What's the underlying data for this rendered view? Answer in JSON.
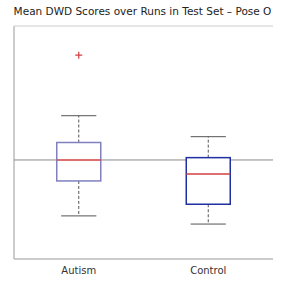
{
  "chart_data": {
    "type": "box",
    "title": "Mean DWD Scores over Runs in Test Set – Pose O",
    "categories": [
      "Autism",
      "Control"
    ],
    "boxes": [
      {
        "median": 0.0,
        "q1": -0.18,
        "q3": 0.15,
        "whisker_low": -0.48,
        "whisker_high": 0.38,
        "outliers": [
          0.9
        ],
        "color": "#8080c0"
      },
      {
        "median": -0.12,
        "q1": -0.38,
        "q3": 0.02,
        "whisker_low": -0.55,
        "whisker_high": 0.2,
        "outliers": [],
        "color": "#2030a0"
      }
    ],
    "hline": 0.0,
    "ylim": [
      -0.85,
      1.15
    ],
    "tick_labels": "x"
  }
}
